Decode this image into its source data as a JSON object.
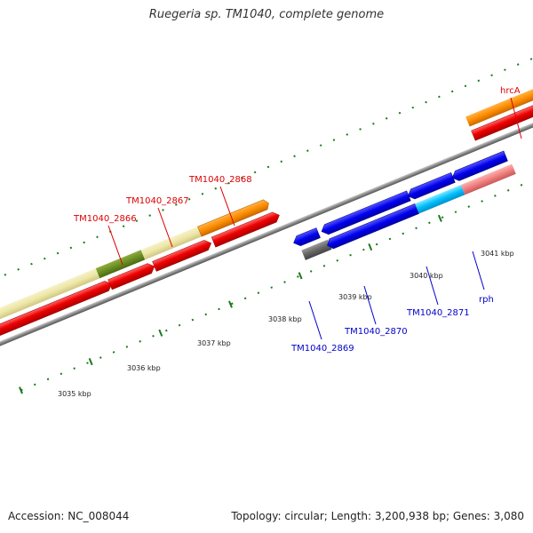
{
  "title": "Ruegeria sp. TM1040, complete genome",
  "footer": {
    "accession": "Accession: NC_008044",
    "info": "Topology: circular; Length: 3,200,938 bp; Genes: 3,080"
  },
  "colors": {
    "forward_label": "#dd0000",
    "reverse_label": "#0000cc",
    "backbone": "#888888",
    "tick": "#1a7a1a"
  },
  "ruler_labels": [
    "3035 kbp",
    "3036 kbp",
    "3037 kbp",
    "3038 kbp",
    "3039 kbp",
    "3040 kbp",
    "3041 kbp"
  ],
  "gene_labels": {
    "forward": [
      "TM1040_2866",
      "TM1040_2867",
      "TM1040_2868",
      "hrcA"
    ],
    "reverse": [
      "TM1040_2869",
      "TM1040_2870",
      "TM1040_2871",
      "rph"
    ]
  }
}
